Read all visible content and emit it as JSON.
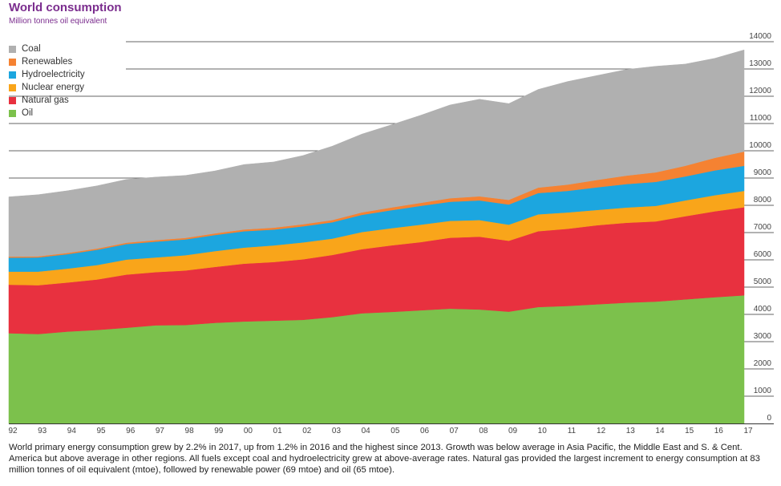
{
  "title": "World consumption",
  "subtitle": "Million tonnes oil equivalent",
  "caption": "World primary energy consumption grew by 2.2% in 2017, up from 1.2% in 2016 and the highest since 2013. Growth was below average in Asia Pacific, the Middle East and S. & Cent. America but above average in other regions. All fuels except coal and hydroelectricity grew at above-average rates. Natural gas provided the largest increment to energy consumption at 83 million tonnes of oil equivalent (mtoe), followed by renewable power (69 mtoe) and oil (65 mtoe).",
  "legend": [
    {
      "label": "Coal",
      "color": "#b0b0b0"
    },
    {
      "label": "Renewables",
      "color": "#f58232"
    },
    {
      "label": "Hydroelectricity",
      "color": "#1ca6df"
    },
    {
      "label": "Nuclear energy",
      "color": "#f9a51a"
    },
    {
      "label": "Natural gas",
      "color": "#e8313f"
    },
    {
      "label": "Oil",
      "color": "#7cc14c"
    }
  ],
  "chart_data": {
    "type": "area",
    "stacked": true,
    "title": "World consumption",
    "ylabel": "Million tonnes oil equivalent",
    "x": [
      "92",
      "93",
      "94",
      "95",
      "96",
      "97",
      "98",
      "99",
      "00",
      "01",
      "02",
      "03",
      "04",
      "05",
      "06",
      "07",
      "08",
      "09",
      "10",
      "11",
      "12",
      "13",
      "14",
      "15",
      "16",
      "17"
    ],
    "yticks": [
      0,
      1000,
      2000,
      3000,
      4000,
      5000,
      6000,
      7000,
      8000,
      9000,
      10000,
      11000,
      12000,
      13000,
      14000
    ],
    "ylim": [
      0,
      14000
    ],
    "y_axis_position": "right",
    "grid": "horizontal partial",
    "legend_position": "top-left",
    "series": [
      {
        "name": "Oil",
        "color": "#7cc14c",
        "values": [
          3310,
          3280,
          3370,
          3430,
          3510,
          3600,
          3610,
          3690,
          3740,
          3770,
          3800,
          3900,
          4040,
          4090,
          4150,
          4210,
          4180,
          4100,
          4270,
          4310,
          4370,
          4430,
          4470,
          4550,
          4630,
          4700
        ]
      },
      {
        "name": "Natural gas",
        "color": "#e8313f",
        "values": [
          1780,
          1790,
          1800,
          1850,
          1950,
          1950,
          2000,
          2050,
          2120,
          2150,
          2220,
          2280,
          2350,
          2440,
          2500,
          2600,
          2670,
          2600,
          2780,
          2830,
          2900,
          2930,
          2940,
          3050,
          3150,
          3230
        ]
      },
      {
        "name": "Nuclear energy",
        "color": "#f9a51a",
        "values": [
          480,
          500,
          510,
          530,
          550,
          540,
          560,
          580,
          590,
          610,
          620,
          600,
          630,
          630,
          640,
          620,
          610,
          590,
          620,
          600,
          560,
          560,
          570,
          580,
          590,
          600
        ]
      },
      {
        "name": "Hydroelectricity",
        "color": "#1ca6df",
        "values": [
          510,
          520,
          530,
          560,
          570,
          580,
          580,
          590,
          600,
          580,
          590,
          600,
          630,
          660,
          690,
          700,
          720,
          740,
          780,
          790,
          830,
          860,
          880,
          880,
          910,
          920
        ]
      },
      {
        "name": "Renewables",
        "color": "#f58232",
        "values": [
          40,
          40,
          45,
          45,
          50,
          55,
          55,
          60,
          65,
          70,
          75,
          80,
          90,
          100,
          110,
          130,
          150,
          170,
          200,
          230,
          270,
          310,
          350,
          390,
          460,
          520
        ]
      },
      {
        "name": "Coal",
        "color": "#b0b0b0",
        "values": [
          2190,
          2260,
          2280,
          2300,
          2320,
          2310,
          2290,
          2290,
          2380,
          2410,
          2520,
          2710,
          2870,
          3030,
          3210,
          3420,
          3560,
          3530,
          3600,
          3780,
          3830,
          3890,
          3890,
          3730,
          3650,
          3730
        ]
      }
    ]
  }
}
